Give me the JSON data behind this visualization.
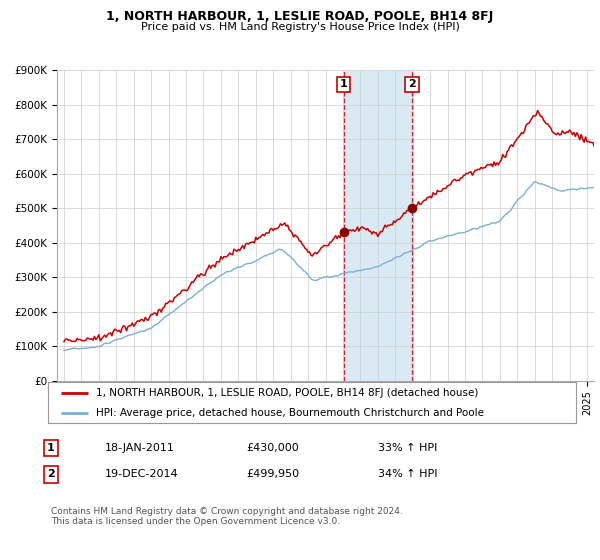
{
  "title": "1, NORTH HARBOUR, 1, LESLIE ROAD, POOLE, BH14 8FJ",
  "subtitle": "Price paid vs. HM Land Registry's House Price Index (HPI)",
  "legend_line1": "1, NORTH HARBOUR, 1, LESLIE ROAD, POOLE, BH14 8FJ (detached house)",
  "legend_line2": "HPI: Average price, detached house, Bournemouth Christchurch and Poole",
  "transaction1_date": "18-JAN-2011",
  "transaction1_price": "£430,000",
  "transaction1_pct": "33% ↑ HPI",
  "transaction2_date": "19-DEC-2014",
  "transaction2_price": "£499,950",
  "transaction2_pct": "34% ↑ HPI",
  "footnote": "Contains HM Land Registry data © Crown copyright and database right 2024.\nThis data is licensed under the Open Government Licence v3.0.",
  "red_color": "#cc0000",
  "blue_color": "#7ab0d4",
  "marker_color": "#880000",
  "vline_color": "#cc0000",
  "shade_color": "#daeaf5",
  "ylim": [
    0,
    900000
  ],
  "yticks": [
    0,
    100000,
    200000,
    300000,
    400000,
    500000,
    600000,
    700000,
    800000,
    900000
  ],
  "grid_color": "#cccccc",
  "background_color": "#ffffff",
  "transaction1_x": 2011.05,
  "transaction2_x": 2014.96
}
